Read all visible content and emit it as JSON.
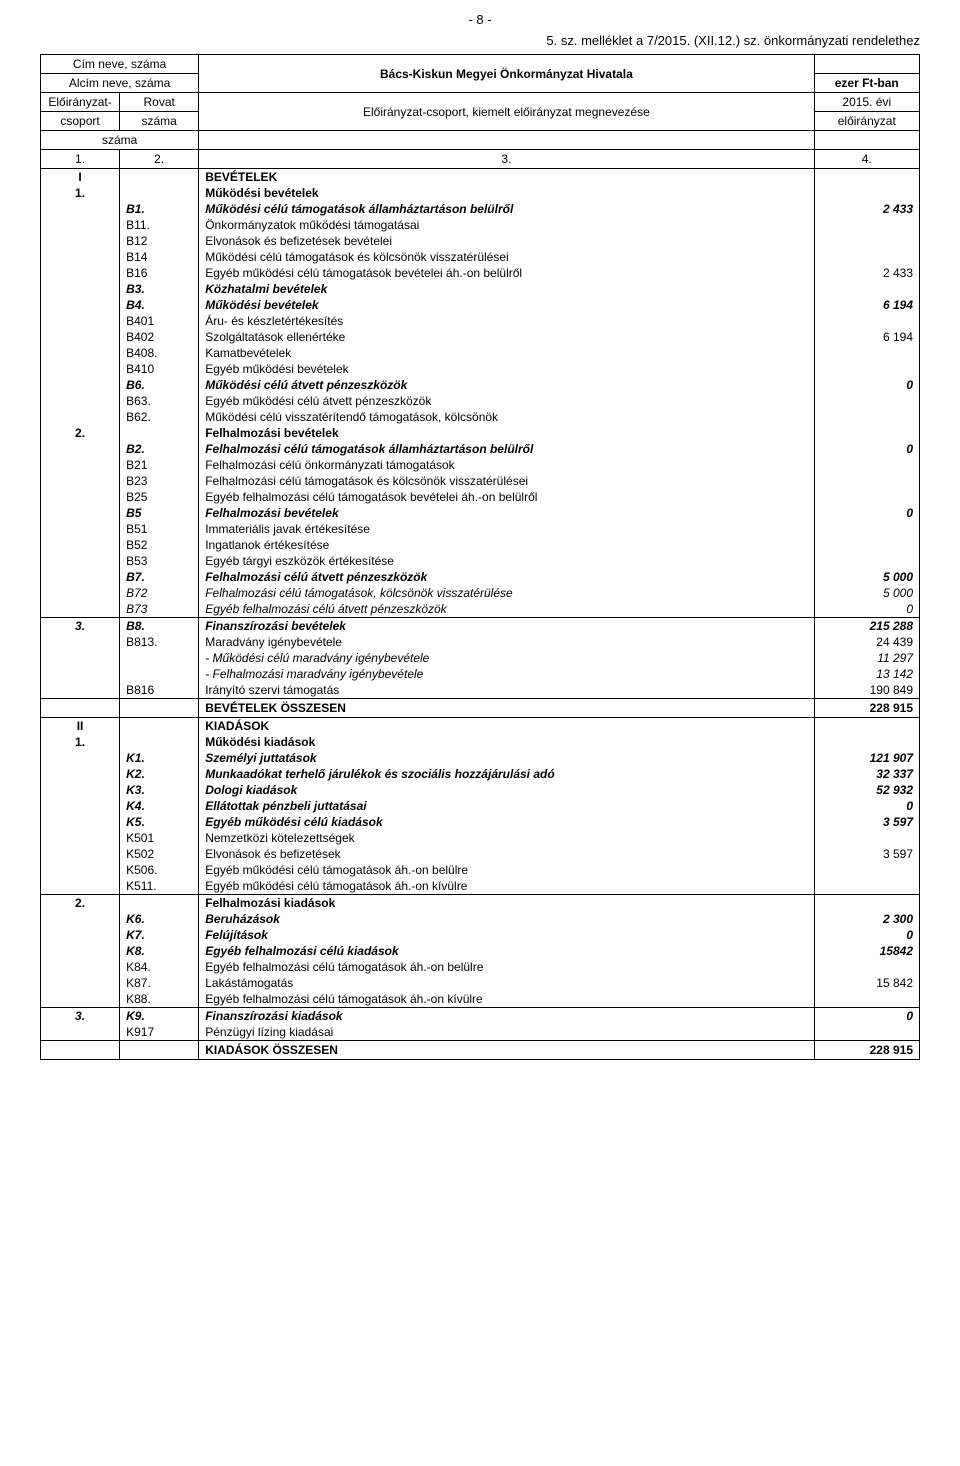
{
  "page_number": "- 8 -",
  "note": "5. sz. melléklet a 7/2015. (XII.12.) sz. önkormányzati rendelethez",
  "header": {
    "cim_neve": "Cím neve, száma",
    "alcim_neve": "Alcím neve, száma",
    "org_title": "Bács-Kiskun Megyei Önkormányzat Hivatala",
    "unit": "ezer Ft-ban",
    "elo_csoport1": "Előirányzat-",
    "elo_csoport2": "csoport",
    "rovat1": "Rovat",
    "rovat2": "száma",
    "megnevezes": "Előirányzat-csoport, kiemelt előirányzat megnevezése",
    "ev1": "2015. évi",
    "ev2": "előirányzat",
    "szama": "száma"
  },
  "colnums": {
    "c1": "1.",
    "c2": "2.",
    "c3": "3.",
    "c4": "4."
  },
  "rows": [
    {
      "a": "I",
      "b": "",
      "c": "BEVÉTELEK",
      "d": "",
      "style": "bold"
    },
    {
      "a": "1.",
      "b": "",
      "c": "Működési bevételek",
      "d": "",
      "style": "bold"
    },
    {
      "a": "",
      "b": "B1.",
      "c": "Működési célú támogatások államháztartáson belülről",
      "d": "2 433",
      "style": "bolditalic"
    },
    {
      "a": "",
      "b": "B11.",
      "c": "Önkormányzatok működési támogatásai",
      "d": ""
    },
    {
      "a": "",
      "b": "B12",
      "c": "Elvonások és befizetések bevételei",
      "d": ""
    },
    {
      "a": "",
      "b": "B14",
      "c": "Működési célú támogatások és kölcsönök visszatérülései",
      "d": ""
    },
    {
      "a": "",
      "b": "B16",
      "c": "Egyéb működési célú támogatások bevételei áh.-on belülről",
      "d": "2 433"
    },
    {
      "a": "",
      "b": "B3.",
      "c": "Közhatalmi bevételek",
      "d": "",
      "style": "bolditalic"
    },
    {
      "a": "",
      "b": "B4.",
      "c": "Működési bevételek",
      "d": "6 194",
      "style": "bolditalic"
    },
    {
      "a": "",
      "b": "B401",
      "c": "Áru- és készletértékesítés",
      "d": ""
    },
    {
      "a": "",
      "b": "B402",
      "c": "Szolgáltatások ellenértéke",
      "d": "6 194"
    },
    {
      "a": "",
      "b": "B408.",
      "c": "Kamatbevételek",
      "d": ""
    },
    {
      "a": "",
      "b": "B410",
      "c": "Egyéb működési bevételek",
      "d": ""
    },
    {
      "a": "",
      "b": "B6.",
      "c": "Működési célú átvett pénzeszközök",
      "d": "0",
      "style": "bolditalic"
    },
    {
      "a": "",
      "b": "B63.",
      "c": "Egyéb működési célú átvett pénzeszközök",
      "d": ""
    },
    {
      "a": "",
      "b": "B62.",
      "c": "Működési célú visszatérítendő támogatások, kölcsönök",
      "d": ""
    },
    {
      "a": "2.",
      "b": "",
      "c": "Felhalmozási bevételek",
      "d": "",
      "style": "bold"
    },
    {
      "a": "",
      "b": "B2.",
      "c": "Felhalmozási célú támogatások államháztartáson belülről",
      "d": "0",
      "style": "bolditalic"
    },
    {
      "a": "",
      "b": "B21",
      "c": "Felhalmozási célú önkormányzati támogatások",
      "d": ""
    },
    {
      "a": "",
      "b": "B23",
      "c": "Felhalmozási célú támogatások és kölcsönök visszatérülései",
      "d": ""
    },
    {
      "a": "",
      "b": "B25",
      "c": "Egyéb felhalmozási célú támogatások bevételei áh.-on belülről",
      "d": ""
    },
    {
      "a": "",
      "b": "B5",
      "c": "Felhalmozási bevételek",
      "d": "0",
      "style": "bolditalic"
    },
    {
      "a": "",
      "b": "B51",
      "c": "Immateriális javak értékesítése",
      "d": ""
    },
    {
      "a": "",
      "b": "B52",
      "c": "Ingatlanok értékesítése",
      "d": ""
    },
    {
      "a": "",
      "b": "B53",
      "c": "Egyéb tárgyi eszközök értékesítése",
      "d": ""
    },
    {
      "a": "",
      "b": "B7.",
      "c": "Felhalmozási célú átvett pénzeszközök",
      "d": "5 000",
      "style": "bolditalic"
    },
    {
      "a": "",
      "b": "B72",
      "c": "Felhalmozási célú támogatások, kölcsönök visszatérülése",
      "d": "5 000",
      "style": "italic"
    },
    {
      "a": "",
      "b": "B73",
      "c": "Egyéb felhalmozási célú átvett pénzeszközök",
      "d": "0",
      "style": "italic"
    }
  ],
  "rows2": [
    {
      "a": "3.",
      "b": "B8.",
      "c": "Finanszírozási bevételek",
      "d": "215 288",
      "style": "bolditalic"
    },
    {
      "a": "",
      "b": "B813.",
      "c": "Maradvány igénybevétele",
      "d": "24 439"
    },
    {
      "a": "",
      "b": "",
      "c": "- Működési célú maradvány igénybevétele",
      "d": "11 297",
      "style": "italic"
    },
    {
      "a": "",
      "b": "",
      "c": "- Felhalmozási maradvány igénybevétele",
      "d": "13 142",
      "style": "italic"
    },
    {
      "a": "",
      "b": "B816",
      "c": "Irányító szervi támogatás",
      "d": "190 849"
    }
  ],
  "bev_total_label": "BEVÉTELEK ÖSSZESEN",
  "bev_total_value": "228 915",
  "rows3": [
    {
      "a": "II",
      "b": "",
      "c": "KIADÁSOK",
      "d": "",
      "style": "bold"
    },
    {
      "a": "1.",
      "b": "",
      "c": "Működési kiadások",
      "d": "",
      "style": "bold"
    },
    {
      "a": "",
      "b": "K1.",
      "c": "Személyi juttatások",
      "d": "121 907",
      "style": "bolditalic"
    },
    {
      "a": "",
      "b": "K2.",
      "c": "Munkaadókat terhelő járulékok és szociális hozzájárulási adó",
      "d": "32 337",
      "style": "bolditalic"
    },
    {
      "a": "",
      "b": "K3.",
      "c": "Dologi kiadások",
      "d": "52 932",
      "style": "bolditalic"
    },
    {
      "a": "",
      "b": "K4.",
      "c": "Ellátottak pénzbeli juttatásai",
      "d": "0",
      "style": "bolditalic"
    },
    {
      "a": "",
      "b": "K5.",
      "c": "Egyéb működési célú kiadások",
      "d": "3 597",
      "style": "bolditalic"
    },
    {
      "a": "",
      "b": "K501",
      "c": "Nemzetközi kötelezettségek",
      "d": ""
    },
    {
      "a": "",
      "b": "K502",
      "c": "Elvonások és befizetések",
      "d": "3 597"
    },
    {
      "a": "",
      "b": "K506.",
      "c": "Egyéb működési célú támogatások áh.-on belülre",
      "d": ""
    },
    {
      "a": "",
      "b": "K511.",
      "c": "Egyéb működési célú támogatások áh.-on kívülre",
      "d": ""
    }
  ],
  "rows4": [
    {
      "a": "2.",
      "b": "",
      "c": "Felhalmozási kiadások",
      "d": "",
      "style": "bold"
    },
    {
      "a": "",
      "b": "K6.",
      "c": "Beruházások",
      "d": "2 300",
      "style": "bolditalic"
    },
    {
      "a": "",
      "b": "K7.",
      "c": "Felújítások",
      "d": "0",
      "style": "bolditalic"
    },
    {
      "a": "",
      "b": "K8.",
      "c": "Egyéb felhalmozási célú kiadások",
      "d": "15842",
      "style": "bolditalic"
    },
    {
      "a": "",
      "b": "K84.",
      "c": "Egyéb felhalmozási célú támogatások áh.-on belülre",
      "d": ""
    },
    {
      "a": "",
      "b": "K87.",
      "c": "Lakástámogatás",
      "d": "15 842"
    },
    {
      "a": "",
      "b": "K88.",
      "c": "Egyéb felhalmozási célú támogatások áh.-on kívülre",
      "d": ""
    }
  ],
  "rows5": [
    {
      "a": "3.",
      "b": "K9.",
      "c": "Finanszírozási kiadások",
      "d": "0",
      "style": "bolditalic"
    },
    {
      "a": "",
      "b": "K917",
      "c": "Pénzügyi lízing kiadásai",
      "d": ""
    }
  ],
  "kiad_total_label": "KIADÁSOK ÖSSZESEN",
  "kiad_total_value": "228 915"
}
